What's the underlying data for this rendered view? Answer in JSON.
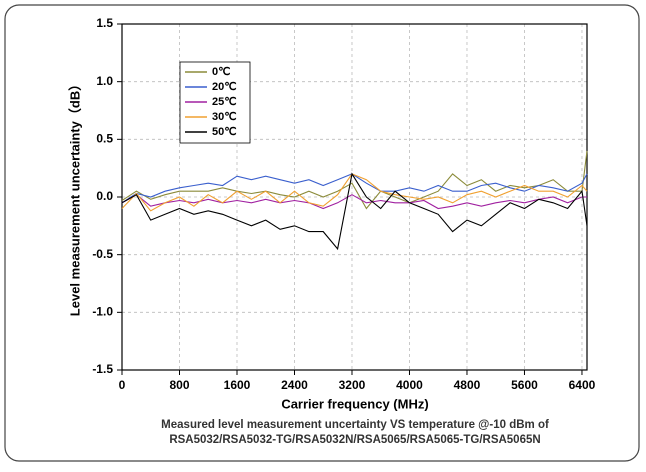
{
  "chart_data": {
    "type": "line",
    "x_label": "Carrier frequency (MHz)",
    "y_label": "Level measurement uncertainty（dB）",
    "caption": [
      "Measured level measurement uncertainty VS temperature @-10 dBm of",
      "RSA5032/RSA5032-TG/RSA5032N/RSA5065/RSA5065-TG/RSA5065N"
    ],
    "x": [
      0,
      200,
      400,
      600,
      800,
      1000,
      1200,
      1400,
      1600,
      1800,
      2000,
      2200,
      2400,
      2600,
      2800,
      3000,
      3200,
      3400,
      3600,
      3800,
      4000,
      4200,
      4400,
      4600,
      4800,
      5000,
      5200,
      5400,
      5600,
      5800,
      6000,
      6200,
      6400,
      6470
    ],
    "series": [
      {
        "name": "0℃",
        "color": "#8b8b3a",
        "values": [
          -0.03,
          0.05,
          -0.02,
          0.02,
          0.05,
          0.05,
          0.05,
          0.08,
          0.05,
          0.03,
          0.05,
          0.02,
          0,
          0.05,
          0,
          0.05,
          0.12,
          -0.1,
          0.05,
          0,
          -0.05,
          0,
          0.05,
          0.2,
          0.1,
          0.15,
          0.05,
          0.1,
          0.08,
          0.1,
          0.15,
          0.05,
          0.05,
          0.4
        ]
      },
      {
        "name": "20℃",
        "color": "#3a5fcd",
        "values": [
          -0.05,
          0.03,
          0,
          0.05,
          0.08,
          0.1,
          0.12,
          0.1,
          0.18,
          0.15,
          0.18,
          0.15,
          0.12,
          0.15,
          0.1,
          0.15,
          0.2,
          0.12,
          0.05,
          0.05,
          0.08,
          0.05,
          0.1,
          0.05,
          0.05,
          0.1,
          0.12,
          0.08,
          0.05,
          0.1,
          0.08,
          0.05,
          0.12,
          0.2
        ]
      },
      {
        "name": "25℃",
        "color": "#a020a0",
        "values": [
          -0.05,
          0.02,
          -0.08,
          -0.05,
          -0.03,
          -0.05,
          -0.02,
          -0.05,
          -0.03,
          -0.05,
          -0.02,
          -0.05,
          -0.03,
          -0.05,
          -0.1,
          -0.05,
          0.02,
          -0.05,
          -0.03,
          -0.05,
          -0.05,
          -0.03,
          -0.1,
          -0.08,
          -0.05,
          -0.08,
          -0.05,
          -0.03,
          -0.05,
          -0.02,
          0,
          -0.05,
          0,
          0
        ]
      },
      {
        "name": "30℃",
        "color": "#f0a030",
        "values": [
          -0.1,
          0.03,
          -0.12,
          -0.05,
          0,
          -0.08,
          0.02,
          -0.05,
          0.05,
          -0.02,
          0.05,
          -0.05,
          0.05,
          -0.05,
          -0.08,
          0.02,
          0.2,
          0.15,
          0.05,
          0.02,
          0,
          -0.02,
          0,
          -0.05,
          0.02,
          0.05,
          0,
          0.05,
          0.1,
          0.05,
          0.05,
          0,
          0.1,
          0.05
        ]
      },
      {
        "name": "50℃",
        "color": "#000000",
        "values": [
          -0.05,
          0.02,
          -0.2,
          -0.15,
          -0.1,
          -0.15,
          -0.12,
          -0.15,
          -0.2,
          -0.25,
          -0.2,
          -0.28,
          -0.25,
          -0.3,
          -0.3,
          -0.45,
          0.2,
          0,
          -0.1,
          0.05,
          -0.05,
          -0.1,
          -0.15,
          -0.3,
          -0.2,
          -0.25,
          -0.15,
          -0.05,
          -0.1,
          -0.02,
          -0.05,
          -0.1,
          0.05,
          -0.25
        ]
      }
    ],
    "xlim": [
      0,
      6470
    ],
    "xticks": [
      0,
      800,
      1600,
      2400,
      3200,
      4000,
      4800,
      5600,
      6400
    ],
    "ylim": [
      -1.5,
      1.5
    ],
    "yticks": [
      1.5,
      {
        "value": 1,
        "label": "1.0"
      },
      0.5,
      {
        "value": 0,
        "label": "0.0"
      },
      -0.5,
      {
        "value": -1,
        "label": "-1.0"
      },
      -1.5
    ],
    "grid": true,
    "legend": "upper left"
  }
}
